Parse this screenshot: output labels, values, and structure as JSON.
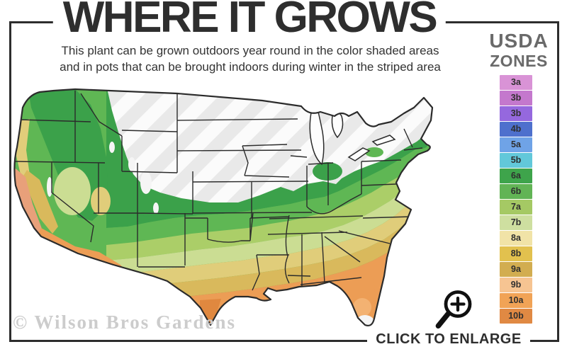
{
  "header": {
    "title": "WHERE IT GROWS",
    "subtitle_line1": "This plant can be grown outdoors year round in the color shaded areas",
    "subtitle_line2": "and in pots that can be brought indoors during winter in the striped area"
  },
  "legend": {
    "title_line1": "USDA",
    "title_line2": "ZONES",
    "zones": [
      {
        "label": "3a",
        "color": "#d993d6"
      },
      {
        "label": "3b",
        "color": "#c478cd"
      },
      {
        "label": "3b",
        "color": "#9568de"
      },
      {
        "label": "4b",
        "color": "#4e70cd"
      },
      {
        "label": "5a",
        "color": "#6fa3e7"
      },
      {
        "label": "5b",
        "color": "#62c8da"
      },
      {
        "label": "6a",
        "color": "#3ea44b"
      },
      {
        "label": "6b",
        "color": "#62b455"
      },
      {
        "label": "7a",
        "color": "#a5c964"
      },
      {
        "label": "7b",
        "color": "#cedfa0"
      },
      {
        "label": "8a",
        "color": "#f1e3a7"
      },
      {
        "label": "8b",
        "color": "#e2c14e"
      },
      {
        "label": "9a",
        "color": "#d2ad50"
      },
      {
        "label": "9b",
        "color": "#f6c492"
      },
      {
        "label": "10a",
        "color": "#f1a356"
      },
      {
        "label": "10b",
        "color": "#e08943"
      }
    ]
  },
  "footer": {
    "watermark": "© Wilson Bros Gardens",
    "enlarge_label": "CLICK TO ENLARGE"
  },
  "icons": {
    "magnifier": "magnifier-plus-icon"
  },
  "map": {
    "colors": {
      "outline": "#2b2b2b",
      "state_line": "#2b2b2b",
      "base_white": "#fbfbfb",
      "stripe": "#e9e9e9",
      "green_dark": "#3ba14a",
      "green_mid": "#5fb754",
      "yellow_green": "#abce68",
      "pale_green": "#cbdd93",
      "khaki": "#e0cd7a",
      "gold": "#d9b95c",
      "orange": "#ec9d55",
      "orange_deep": "#e0883f",
      "salmon": "#e8a07a",
      "peach": "#f3b272",
      "lake": "#fdfdfd",
      "white_patch": "#f5f5f5",
      "icon_ink": "#101010"
    }
  }
}
